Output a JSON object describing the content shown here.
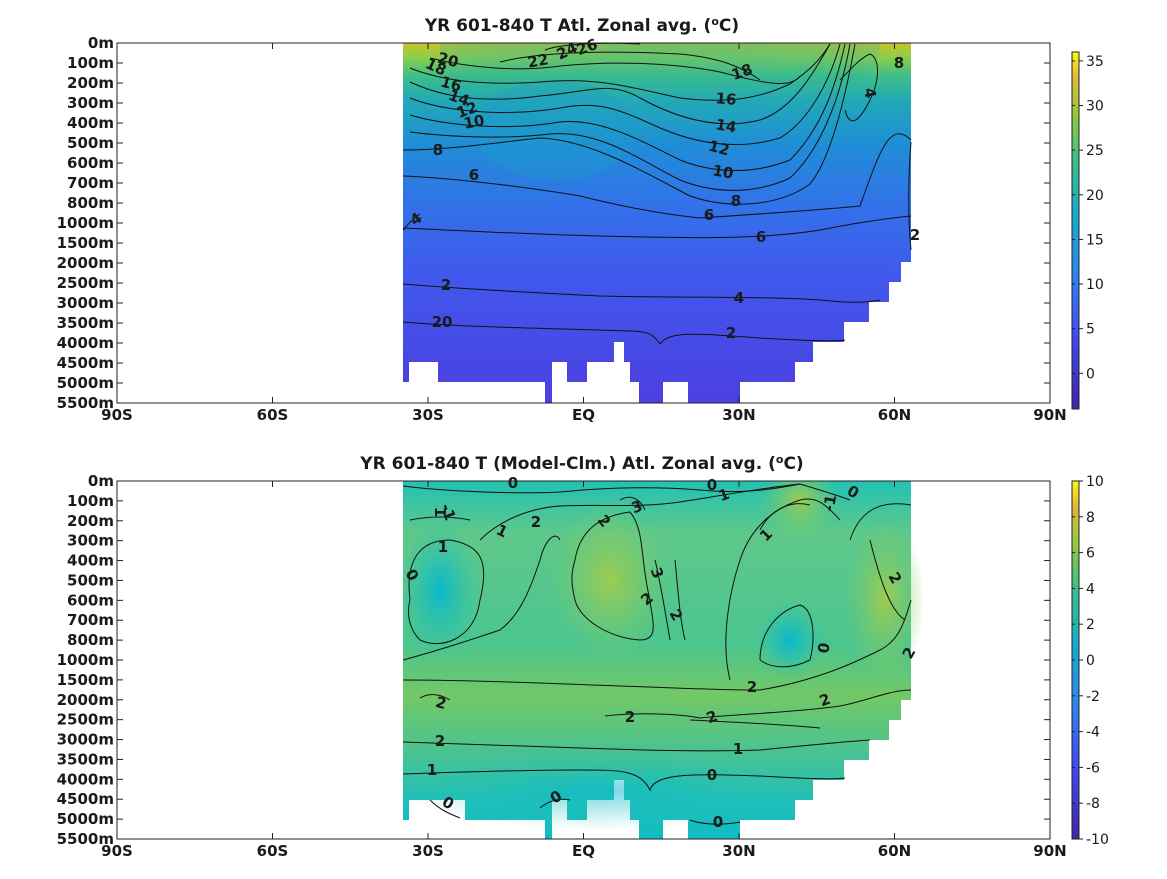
{
  "chart_data": [
    {
      "type": "heatmap",
      "title": "YR 601-840 T Atl. Zonal avg. (",
      "title_sup": "o",
      "title_end": "C)",
      "x_ticks": [
        "90S",
        "60S",
        "30S",
        "EQ",
        "30N",
        "60N",
        "90N"
      ],
      "y_ticks": [
        "0m",
        "100m",
        "200m",
        "300m",
        "400m",
        "500m",
        "600m",
        "700m",
        "800m",
        "1000m",
        "1500m",
        "2000m",
        "2500m",
        "3000m",
        "3500m",
        "4000m",
        "4500m",
        "5000m",
        "5500m"
      ],
      "xlim": [
        -90,
        90
      ],
      "colorbar": {
        "ticks": [
          "35",
          "30",
          "25",
          "20",
          "15",
          "10",
          "5",
          "0"
        ],
        "tick_values": [
          35,
          30,
          25,
          20,
          15,
          10,
          5,
          0
        ],
        "range": [
          -4,
          36
        ]
      },
      "colors": {
        "low": "#3e26a8",
        "high": "#f9fb15"
      },
      "contour_labels": [
        "26",
        "24",
        "22",
        "20",
        "18",
        "16",
        "14",
        "12",
        "10",
        "8",
        "6",
        "4",
        "2",
        "20",
        "18",
        "16",
        "14",
        "12",
        "10",
        "8",
        "6",
        "6",
        "8",
        "4",
        "4",
        "2",
        "2"
      ],
      "grid": false
    },
    {
      "type": "heatmap",
      "title": "YR 601-840 T (Model-Clm.) Atl. Zonal avg. (",
      "title_sup": "o",
      "title_end": "C)",
      "x_ticks": [
        "90S",
        "60S",
        "30S",
        "EQ",
        "30N",
        "60N",
        "90N"
      ],
      "y_ticks": [
        "0m",
        "100m",
        "200m",
        "300m",
        "400m",
        "500m",
        "600m",
        "700m",
        "800m",
        "1000m",
        "1500m",
        "2000m",
        "2500m",
        "3000m",
        "3500m",
        "4000m",
        "4500m",
        "5000m",
        "5500m"
      ],
      "xlim": [
        -90,
        90
      ],
      "colorbar": {
        "ticks": [
          "10",
          "8",
          "6",
          "4",
          "2",
          "0",
          "-2",
          "-4",
          "-6",
          "-8",
          "-10"
        ],
        "tick_values": [
          10,
          8,
          6,
          4,
          2,
          0,
          -2,
          -4,
          -6,
          -8,
          -10
        ],
        "range": [
          -10,
          10
        ]
      },
      "colors": {
        "low": "#3e26a8",
        "high": "#f9fb15"
      },
      "contour_labels": [
        "0",
        "0",
        "1",
        "1",
        "2",
        "2",
        "3",
        "3",
        "2",
        "2",
        "1",
        "0",
        "-1",
        "2",
        "0",
        "2",
        "2",
        "2",
        "1",
        "2",
        "2",
        "2",
        "2",
        "1",
        "1",
        "0",
        "0",
        "0",
        "0",
        "0",
        "-1",
        "1"
      ],
      "grid": false
    }
  ]
}
